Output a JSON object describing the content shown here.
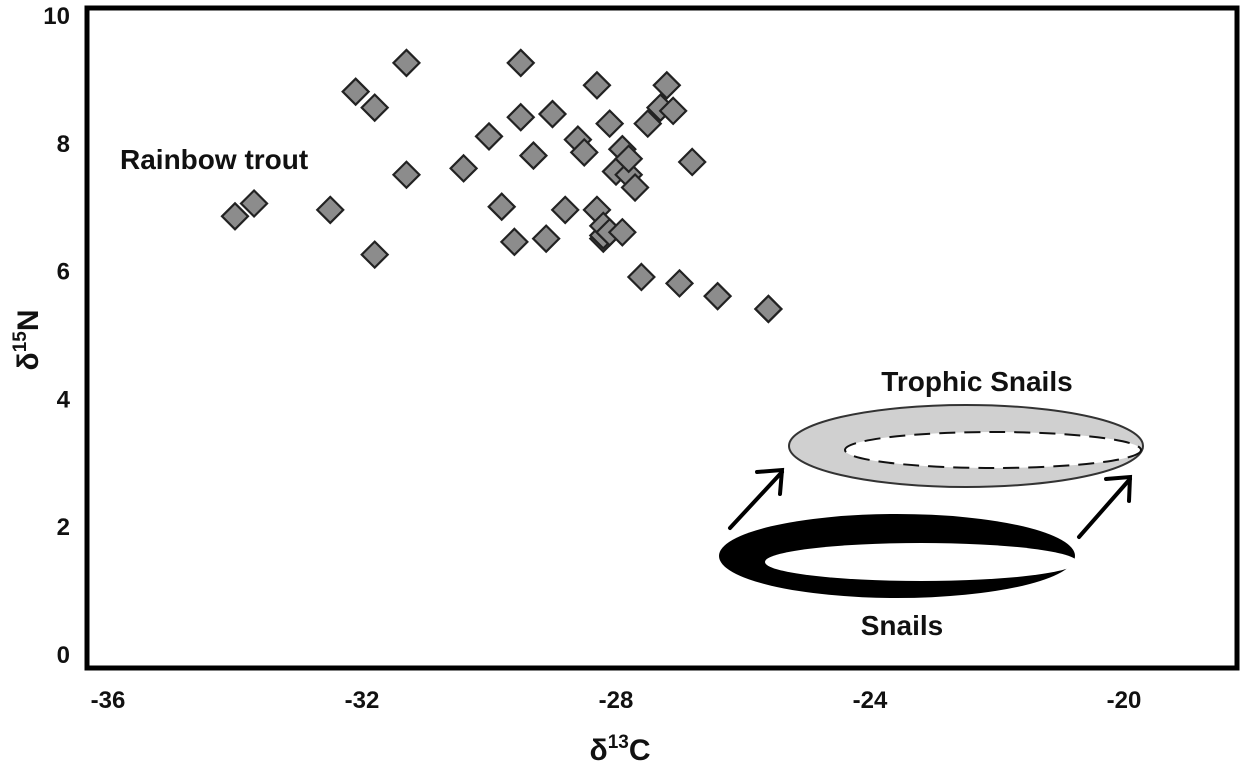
{
  "chart_data": {
    "type": "scatter",
    "title": "",
    "xlabel_prefix": "δ",
    "xlabel_sup": "13",
    "xlabel_suffix": "C",
    "ylabel_prefix": "δ",
    "ylabel_sup": "15",
    "ylabel_suffix": "N",
    "xlim": [
      -36,
      -18
    ],
    "ylim": [
      -0.25,
      10.2
    ],
    "xticks": [
      -36,
      -32,
      -28,
      -24,
      -20
    ],
    "xtick_labels": [
      "-36",
      "-32",
      "-28",
      "-24",
      "-20"
    ],
    "yticks": [
      0,
      2,
      4,
      6,
      8,
      10
    ],
    "ytick_labels": [
      "0",
      "2",
      "4",
      "6",
      "8",
      "10"
    ],
    "grid": false,
    "series": [
      {
        "marker": "diamond",
        "color": "#8c8c8c",
        "x": [
          -34.0,
          -33.7,
          -32.5,
          -32.1,
          -31.8,
          -31.8,
          -31.3,
          -31.3,
          -30.4,
          -30.0,
          -29.8,
          -29.6,
          -29.5,
          -29.5,
          -29.3,
          -29.1,
          -29.0,
          -28.8,
          -28.6,
          -28.5,
          -28.3,
          -28.3,
          -28.2,
          -28.2,
          -28.2,
          -28.1,
          -28.1,
          -28.0,
          -27.9,
          -27.9,
          -27.8,
          -27.8,
          -27.7,
          -27.6,
          -27.5,
          -27.3,
          -27.2,
          -27.1,
          -27.0,
          -26.8,
          -26.4,
          -25.6,
          -25.6
        ],
        "y": [
          6.85,
          7.05,
          6.95,
          8.8,
          8.55,
          6.25,
          9.25,
          7.5,
          7.6,
          8.1,
          7.0,
          6.45,
          8.4,
          9.25,
          7.8,
          6.5,
          8.45,
          6.95,
          8.05,
          7.85,
          8.9,
          6.95,
          6.5,
          6.55,
          6.7,
          6.6,
          8.3,
          7.55,
          7.9,
          6.6,
          7.5,
          7.75,
          7.3,
          5.9,
          8.3,
          8.55,
          8.9,
          8.5,
          5.8,
          7.7,
          5.6,
          5.4,
          5.4
        ]
      }
    ],
    "annotations": {
      "rainbow_trout": "Rainbow trout",
      "trophic_snails": "Trophic Snails",
      "snails": "Snails"
    }
  }
}
